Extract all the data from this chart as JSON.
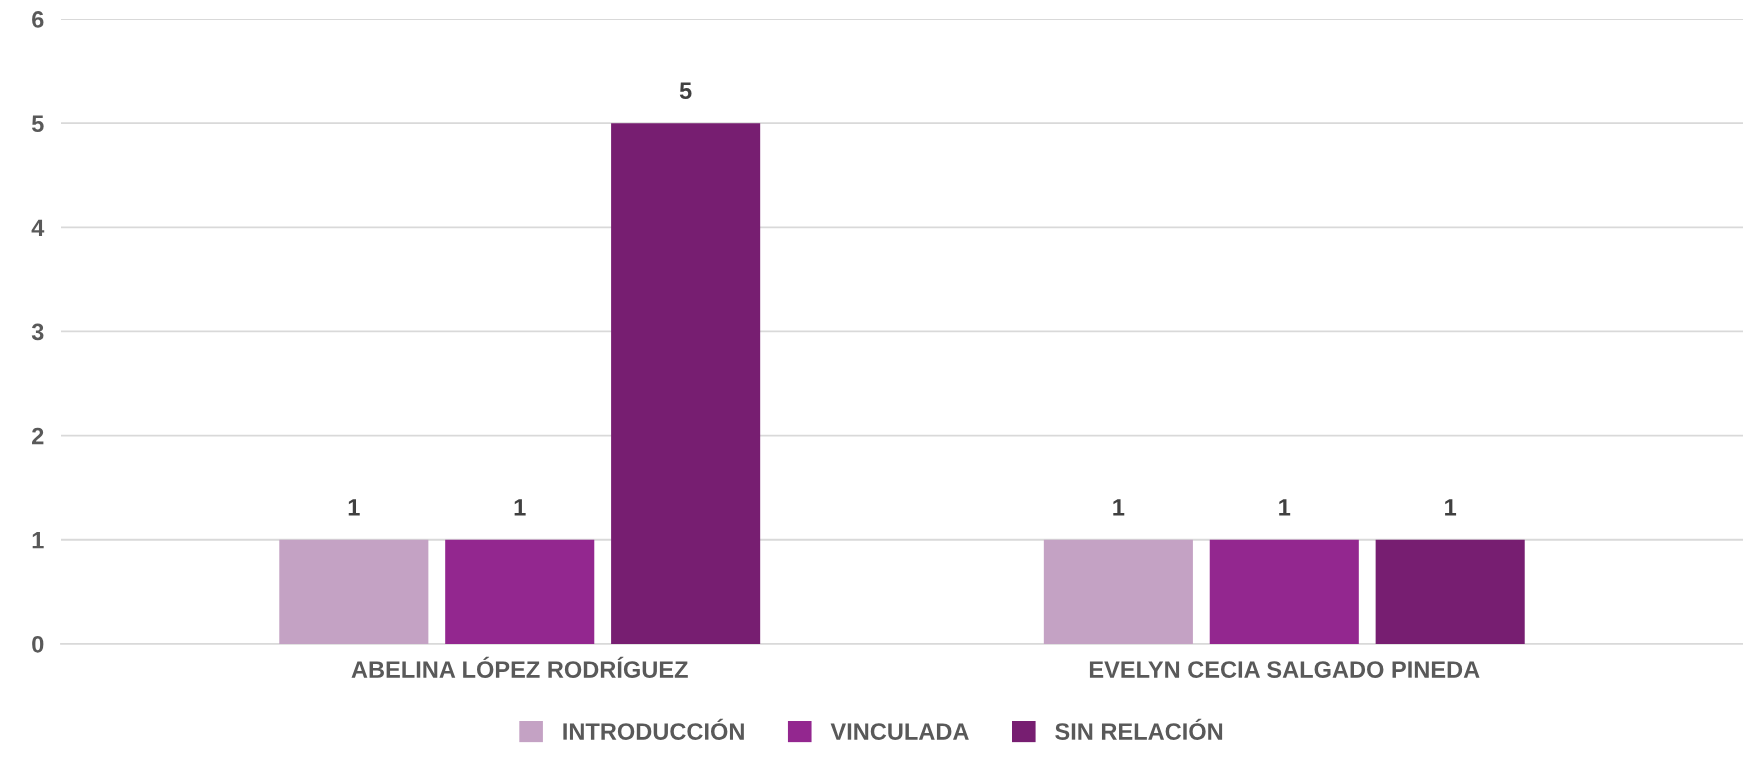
{
  "chart_data": {
    "type": "bar",
    "categories": [
      "ABELINA LÓPEZ RODRÍGUEZ",
      "EVELYN CECIA SALGADO PINEDA"
    ],
    "series": [
      {
        "name": "INTRODUCCIÓN",
        "color": "#c4a2c4",
        "values": [
          1,
          1
        ]
      },
      {
        "name": "VINCULADA",
        "color": "#93278f",
        "values": [
          1,
          1
        ]
      },
      {
        "name": "SIN RELACIÓN",
        "color": "#771e71",
        "values": [
          5,
          1
        ]
      }
    ],
    "ylim": [
      0,
      6
    ],
    "yticks": [
      0,
      1,
      2,
      3,
      4,
      5,
      6
    ],
    "grid": "y",
    "legend": "bottom",
    "data_labels": true
  }
}
